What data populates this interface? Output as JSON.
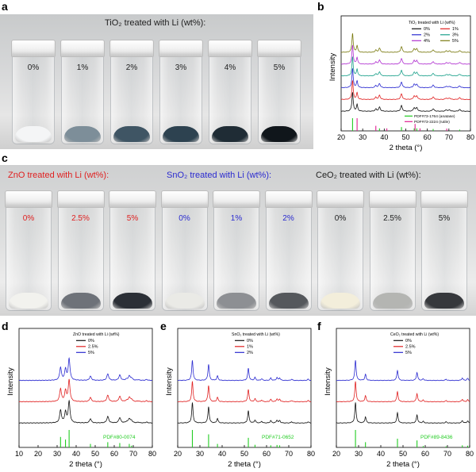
{
  "panel_labels": {
    "a": "a",
    "b": "b",
    "c": "c",
    "d": "d",
    "e": "e",
    "f": "f"
  },
  "panel_a": {
    "title": "TiO₂ treated with Li (wt%):",
    "vials": [
      {
        "label": "0%",
        "powder_color": "#f4f5f6",
        "label_color": "#222222"
      },
      {
        "label": "1%",
        "powder_color": "#7d8e99",
        "label_color": "#222222"
      },
      {
        "label": "2%",
        "powder_color": "#3f5564",
        "label_color": "#222222"
      },
      {
        "label": "3%",
        "powder_color": "#2d4250",
        "label_color": "#222222"
      },
      {
        "label": "4%",
        "powder_color": "#1f2c35",
        "label_color": "#222222"
      },
      {
        "label": "5%",
        "powder_color": "#10161b",
        "label_color": "#222222"
      }
    ]
  },
  "panel_c": {
    "groups": [
      {
        "title": "ZnO treated with Li (wt%):",
        "title_color": "#e02020",
        "vials": [
          {
            "label": "0%",
            "powder_color": "#f2f2ee",
            "label_color": "#e02020"
          },
          {
            "label": "2.5%",
            "powder_color": "#6e7279",
            "label_color": "#e02020"
          },
          {
            "label": "5%",
            "powder_color": "#2b2f36",
            "label_color": "#e02020"
          }
        ]
      },
      {
        "title": "SnO₂ treated with Li (wt%):",
        "title_color": "#2a2ad0",
        "vials": [
          {
            "label": "0%",
            "powder_color": "#eaeae6",
            "label_color": "#2a2ad0"
          },
          {
            "label": "1%",
            "powder_color": "#8d8f93",
            "label_color": "#2a2ad0"
          },
          {
            "label": "2%",
            "powder_color": "#55585c",
            "label_color": "#2a2ad0"
          }
        ]
      },
      {
        "title": "CeO₂ treated with Li (wt%):",
        "title_color": "#222222",
        "vials": [
          {
            "label": "0%",
            "powder_color": "#f3eedb",
            "label_color": "#222222"
          },
          {
            "label": "2.5%",
            "powder_color": "#b4b5b2",
            "label_color": "#222222"
          },
          {
            "label": "5%",
            "powder_color": "#36383c",
            "label_color": "#222222"
          }
        ]
      }
    ]
  },
  "chart_data": [
    {
      "id": "b",
      "type": "line",
      "title": "",
      "xlabel": "2 theta (°)",
      "ylabel": "Intensity",
      "xlim": [
        20,
        80
      ],
      "xticks": [
        20,
        30,
        40,
        50,
        60,
        70,
        80
      ],
      "legend_title": "TiO₂ treated with Li (wt%)",
      "legend_position": "top-right",
      "peaks": [
        {
          "pos": 25.3,
          "h": 1.0,
          "w": 0.35
        },
        {
          "pos": 27.4,
          "h": 0.35,
          "w": 0.35
        },
        {
          "pos": 36.1,
          "h": 0.12,
          "w": 0.4
        },
        {
          "pos": 37.8,
          "h": 0.22,
          "w": 0.45
        },
        {
          "pos": 48.0,
          "h": 0.3,
          "w": 0.45
        },
        {
          "pos": 53.9,
          "h": 0.18,
          "w": 0.45
        },
        {
          "pos": 55.1,
          "h": 0.18,
          "w": 0.45
        },
        {
          "pos": 62.7,
          "h": 0.13,
          "w": 0.5
        },
        {
          "pos": 68.8,
          "h": 0.07,
          "w": 0.5
        },
        {
          "pos": 70.3,
          "h": 0.07,
          "w": 0.5
        },
        {
          "pos": 75.0,
          "h": 0.09,
          "w": 0.5
        }
      ],
      "series": [
        {
          "name": "0%",
          "color": "#111111"
        },
        {
          "name": "1%",
          "color": "#e02020"
        },
        {
          "name": "2%",
          "color": "#2a2ad0"
        },
        {
          "name": "3%",
          "color": "#1aa08a"
        },
        {
          "name": "4%",
          "color": "#b030d0"
        },
        {
          "name": "5%",
          "color": "#7a7a10"
        }
      ],
      "references": [
        {
          "name": "PDF#73-1764 (anatase)",
          "color": "#22cc22",
          "lines": [
            {
              "pos": 25.3,
              "h": 1.0
            },
            {
              "pos": 37.8,
              "h": 0.2
            },
            {
              "pos": 48.0,
              "h": 0.3
            },
            {
              "pos": 53.9,
              "h": 0.2
            },
            {
              "pos": 55.1,
              "h": 0.2
            },
            {
              "pos": 62.7,
              "h": 0.15
            },
            {
              "pos": 75.0,
              "h": 0.1
            }
          ]
        },
        {
          "name": "PDF#73-2224 (rutile)",
          "color": "#e02090",
          "lines": [
            {
              "pos": 27.4,
              "h": 1.0
            },
            {
              "pos": 36.1,
              "h": 0.4
            },
            {
              "pos": 41.2,
              "h": 0.2
            },
            {
              "pos": 54.3,
              "h": 0.55
            },
            {
              "pos": 56.6,
              "h": 0.2
            },
            {
              "pos": 69.0,
              "h": 0.18
            }
          ]
        }
      ]
    },
    {
      "id": "d",
      "type": "line",
      "title": "",
      "xlabel": "2 theta (°)",
      "ylabel": "Intensity",
      "xlim": [
        10,
        80
      ],
      "xticks": [
        10,
        20,
        30,
        40,
        50,
        60,
        70,
        80
      ],
      "legend_title": "ZnO treated with Li (wt%)",
      "legend_position": "top-right",
      "peaks": [
        {
          "pos": 31.8,
          "h": 0.6,
          "w": 0.55
        },
        {
          "pos": 34.4,
          "h": 0.5,
          "w": 0.55
        },
        {
          "pos": 36.3,
          "h": 1.0,
          "w": 0.55
        },
        {
          "pos": 47.5,
          "h": 0.2,
          "w": 0.55
        },
        {
          "pos": 56.6,
          "h": 0.3,
          "w": 0.6
        },
        {
          "pos": 62.9,
          "h": 0.25,
          "w": 0.6
        },
        {
          "pos": 66.4,
          "h": 0.05,
          "w": 0.6
        },
        {
          "pos": 67.9,
          "h": 0.2,
          "w": 0.6
        },
        {
          "pos": 69.1,
          "h": 0.1,
          "w": 0.6
        },
        {
          "pos": 72.6,
          "h": 0.03,
          "w": 0.6
        },
        {
          "pos": 77.0,
          "h": 0.04,
          "w": 0.6
        }
      ],
      "series": [
        {
          "name": "0%",
          "color": "#111111"
        },
        {
          "name": "2.5%",
          "color": "#e02020"
        },
        {
          "name": "5%",
          "color": "#2a2ad0"
        }
      ],
      "references": [
        {
          "name": "PDF#80-0074",
          "color": "#22cc22",
          "lines": [
            {
              "pos": 31.8,
              "h": 0.6
            },
            {
              "pos": 34.4,
              "h": 0.45
            },
            {
              "pos": 36.3,
              "h": 1.0
            },
            {
              "pos": 47.5,
              "h": 0.2
            },
            {
              "pos": 56.6,
              "h": 0.3
            },
            {
              "pos": 62.9,
              "h": 0.25
            },
            {
              "pos": 67.9,
              "h": 0.2
            },
            {
              "pos": 69.1,
              "h": 0.1
            }
          ]
        }
      ]
    },
    {
      "id": "e",
      "type": "line",
      "title": "",
      "xlabel": "2 theta (°)",
      "ylabel": "Intensity",
      "xlim": [
        20,
        80
      ],
      "xticks": [
        20,
        30,
        40,
        50,
        60,
        70,
        80
      ],
      "legend_title": "SnO₂ treated with Li (wt%)",
      "legend_position": "top-right",
      "peaks": [
        {
          "pos": 26.6,
          "h": 1.0,
          "w": 0.35
        },
        {
          "pos": 33.9,
          "h": 0.8,
          "w": 0.35
        },
        {
          "pos": 37.9,
          "h": 0.22,
          "w": 0.35
        },
        {
          "pos": 51.8,
          "h": 0.6,
          "w": 0.35
        },
        {
          "pos": 54.8,
          "h": 0.15,
          "w": 0.35
        },
        {
          "pos": 57.8,
          "h": 0.08,
          "w": 0.35
        },
        {
          "pos": 61.9,
          "h": 0.12,
          "w": 0.35
        },
        {
          "pos": 64.7,
          "h": 0.14,
          "w": 0.35
        },
        {
          "pos": 65.9,
          "h": 0.12,
          "w": 0.35
        },
        {
          "pos": 71.3,
          "h": 0.06,
          "w": 0.35
        },
        {
          "pos": 78.7,
          "h": 0.06,
          "w": 0.35
        }
      ],
      "series": [
        {
          "name": "0%",
          "color": "#111111"
        },
        {
          "name": "1%",
          "color": "#e02020"
        },
        {
          "name": "2%",
          "color": "#2a2ad0"
        }
      ],
      "references": [
        {
          "name": "PDF#71-0652",
          "color": "#22cc22",
          "lines": [
            {
              "pos": 26.6,
              "h": 1.0
            },
            {
              "pos": 33.9,
              "h": 0.75
            },
            {
              "pos": 37.9,
              "h": 0.2
            },
            {
              "pos": 51.8,
              "h": 0.55
            },
            {
              "pos": 54.8,
              "h": 0.15
            },
            {
              "pos": 61.9,
              "h": 0.12
            },
            {
              "pos": 64.7,
              "h": 0.14
            },
            {
              "pos": 65.9,
              "h": 0.12
            }
          ]
        }
      ]
    },
    {
      "id": "f",
      "type": "line",
      "title": "",
      "xlabel": "2 theta (°)",
      "ylabel": "Intensity",
      "xlim": [
        20,
        80
      ],
      "xticks": [
        20,
        30,
        40,
        50,
        60,
        70,
        80
      ],
      "legend_title": "CeO₂ treated with Li (wt%)",
      "legend_position": "top-right",
      "peaks": [
        {
          "pos": 28.6,
          "h": 1.0,
          "w": 0.35
        },
        {
          "pos": 33.1,
          "h": 0.3,
          "w": 0.35
        },
        {
          "pos": 47.5,
          "h": 0.5,
          "w": 0.35
        },
        {
          "pos": 56.3,
          "h": 0.4,
          "w": 0.35
        },
        {
          "pos": 59.1,
          "h": 0.08,
          "w": 0.35
        },
        {
          "pos": 69.4,
          "h": 0.06,
          "w": 0.35
        },
        {
          "pos": 76.7,
          "h": 0.12,
          "w": 0.35
        },
        {
          "pos": 79.1,
          "h": 0.1,
          "w": 0.35
        }
      ],
      "series": [
        {
          "name": "0%",
          "color": "#111111"
        },
        {
          "name": "2.5%",
          "color": "#e02020"
        },
        {
          "name": "5%",
          "color": "#2a2ad0"
        }
      ],
      "references": [
        {
          "name": "PDF#89-8436",
          "color": "#22cc22",
          "lines": [
            {
              "pos": 28.6,
              "h": 1.0
            },
            {
              "pos": 33.1,
              "h": 0.3
            },
            {
              "pos": 47.5,
              "h": 0.5
            },
            {
              "pos": 56.3,
              "h": 0.4
            },
            {
              "pos": 59.1,
              "h": 0.08
            },
            {
              "pos": 69.4,
              "h": 0.06
            },
            {
              "pos": 76.7,
              "h": 0.12
            },
            {
              "pos": 79.1,
              "h": 0.1
            }
          ]
        }
      ]
    }
  ]
}
